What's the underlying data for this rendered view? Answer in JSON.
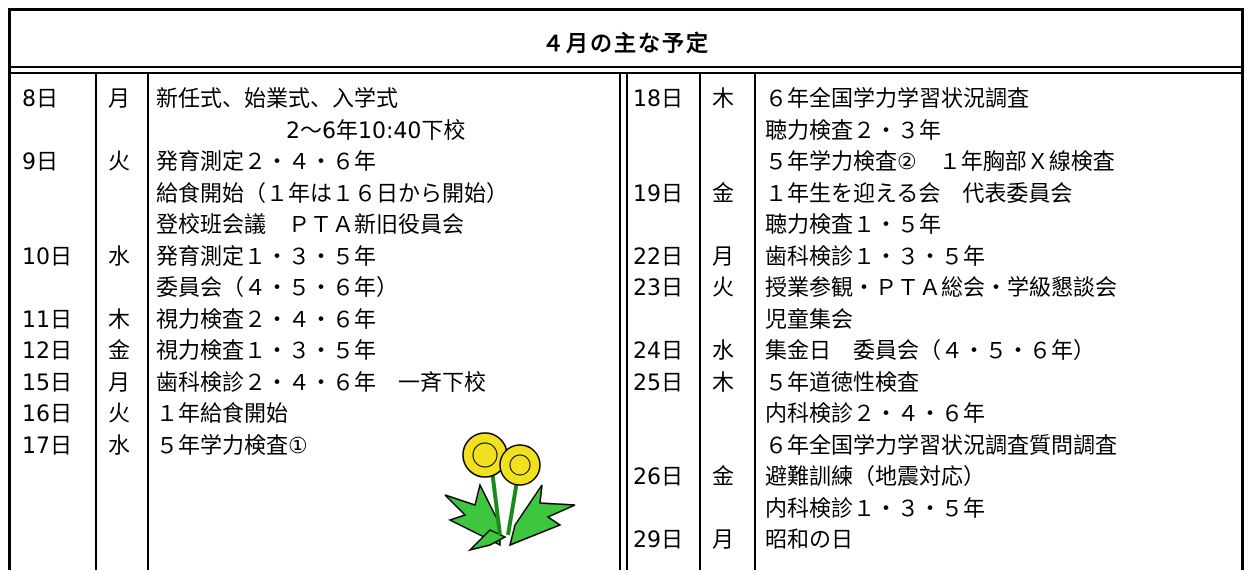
{
  "title": "４月の主な予定",
  "left": [
    {
      "date": "8日",
      "day": "月",
      "events": [
        "新任式、始業式、入学式",
        "2～6年10:40下校"
      ]
    },
    {
      "date": "9日",
      "day": "火",
      "events": [
        "発育測定２・４・６年",
        "給食開始（１年は１６日から開始）",
        "登校班会議　ＰＴＡ新旧役員会"
      ]
    },
    {
      "date": "10日",
      "day": "水",
      "events": [
        "発育測定１・３・５年",
        "委員会（４・５・６年）"
      ]
    },
    {
      "date": "11日",
      "day": "木",
      "events": [
        "視力検査２・４・６年"
      ]
    },
    {
      "date": "12日",
      "day": "金",
      "events": [
        "視力検査１・３・５年"
      ]
    },
    {
      "date": "15日",
      "day": "月",
      "events": [
        "歯科検診２・４・６年　一斉下校"
      ]
    },
    {
      "date": "16日",
      "day": "火",
      "events": [
        "１年給食開始"
      ]
    },
    {
      "date": "17日",
      "day": "水",
      "events": [
        "５年学力検査①"
      ]
    }
  ],
  "right": [
    {
      "date": "18日",
      "day": "木",
      "events": [
        "６年全国学力学習状況調査",
        "聴力検査２・３年",
        "５年学力検査②　１年胸部Ｘ線検査"
      ]
    },
    {
      "date": "19日",
      "day": "金",
      "events": [
        "１年生を迎える会　代表委員会",
        "聴力検査１・５年"
      ]
    },
    {
      "date": "22日",
      "day": "月",
      "events": [
        "歯科検診１・３・５年"
      ]
    },
    {
      "date": "23日",
      "day": "火",
      "events": [
        "授業参観・ＰＴＡ総会・学級懇談会",
        "児童集会"
      ]
    },
    {
      "date": "24日",
      "day": "水",
      "events": [
        "集金日　委員会（４・５・６年）"
      ]
    },
    {
      "date": "25日",
      "day": "木",
      "events": [
        "５年道徳性検査",
        "内科検診２・４・６年",
        "６年全国学力学習状況調査質問調査"
      ]
    },
    {
      "date": "26日",
      "day": "金",
      "events": [
        "避難訓練（地震対応）",
        "内科検診１・３・５年"
      ]
    },
    {
      "date": "29日",
      "day": "月",
      "events": [
        "昭和の日"
      ]
    }
  ]
}
